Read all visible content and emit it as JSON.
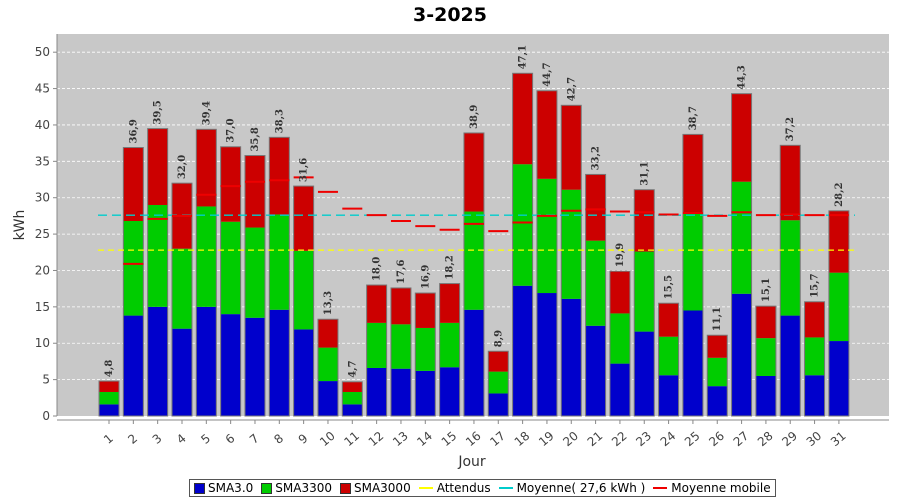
{
  "chart_data": {
    "type": "bar",
    "stacked": true,
    "title": "3-2025",
    "xlabel": "Jour",
    "ylabel": "kWh",
    "ylim": [
      0,
      52.5
    ],
    "yticks": [
      "0",
      "5",
      "10",
      "15",
      "20",
      "25",
      "30",
      "35",
      "40",
      "45",
      "50"
    ],
    "categories": [
      "1",
      "2",
      "3",
      "4",
      "5",
      "6",
      "7",
      "8",
      "9",
      "10",
      "11",
      "12",
      "13",
      "14",
      "15",
      "16",
      "17",
      "18",
      "19",
      "20",
      "21",
      "22",
      "23",
      "24",
      "25",
      "26",
      "27",
      "28",
      "29",
      "30",
      "31"
    ],
    "series": [
      {
        "name": "SMA3.0",
        "color": "#0000cc",
        "values": [
          1.6,
          13.8,
          15.0,
          12.0,
          15.0,
          14.0,
          13.5,
          14.6,
          11.9,
          4.8,
          1.6,
          6.6,
          6.5,
          6.2,
          6.7,
          14.6,
          3.1,
          17.9,
          16.9,
          16.1,
          12.4,
          7.2,
          11.6,
          5.6,
          14.5,
          4.1,
          16.8,
          5.5,
          13.8,
          5.6,
          10.3
        ]
      },
      {
        "name": "SMA3300",
        "color": "#00cc00",
        "values": [
          1.7,
          13.0,
          14.0,
          11.0,
          13.8,
          12.7,
          12.4,
          13.1,
          10.8,
          4.6,
          1.7,
          6.2,
          6.1,
          5.9,
          6.1,
          13.5,
          3.0,
          16.7,
          15.7,
          15.0,
          11.7,
          6.9,
          11.0,
          5.3,
          13.4,
          3.9,
          15.4,
          5.2,
          13.1,
          5.2,
          9.4
        ]
      },
      {
        "name": "SMA3000",
        "color": "#cc0000",
        "values": [
          1.5,
          10.1,
          10.5,
          9.0,
          10.6,
          10.3,
          9.9,
          10.6,
          8.9,
          3.9,
          1.4,
          5.2,
          5.0,
          4.8,
          5.4,
          10.8,
          2.8,
          12.5,
          12.1,
          11.6,
          9.1,
          5.8,
          8.5,
          4.6,
          10.8,
          3.1,
          12.1,
          4.4,
          10.3,
          4.9,
          8.5
        ]
      }
    ],
    "totals_labels": [
      "4,8",
      "36,9",
      "39,5",
      "32,0",
      "39,4",
      "37,0",
      "35,8",
      "38,3",
      "31,6",
      "13,3",
      "4,7",
      "18,0",
      "17,6",
      "16,9",
      "18,2",
      "38,9",
      "8,9",
      "47,1",
      "44,7",
      "42,7",
      "33,2",
      "19,9",
      "31,1",
      "15,5",
      "38,7",
      "11,1",
      "44,3",
      "15,1",
      "37,2",
      "15,7",
      "28,2"
    ],
    "attendus": {
      "name": "Attendus",
      "color": "#ffff00",
      "value": 22.8
    },
    "moyenne": {
      "name": "Moyenne( 27,6 kWh )",
      "color": "#00cccc",
      "value": 27.6
    },
    "moyenne_mobile": {
      "name": "Moyenne mobile",
      "color": "#ee0000",
      "values": [
        null,
        20.9,
        27.1,
        27.5,
        30.4,
        31.6,
        32.2,
        32.4,
        32.8,
        30.8,
        28.5,
        27.6,
        26.8,
        26.1,
        25.6,
        26.4,
        25.4,
        26.6,
        27.5,
        28.2,
        28.4,
        28.1,
        28.0,
        27.7,
        27.9,
        27.5,
        28.0,
        27.6,
        27.7,
        27.6,
        27.6
      ]
    },
    "grid": true,
    "legend_position": "bottom"
  }
}
